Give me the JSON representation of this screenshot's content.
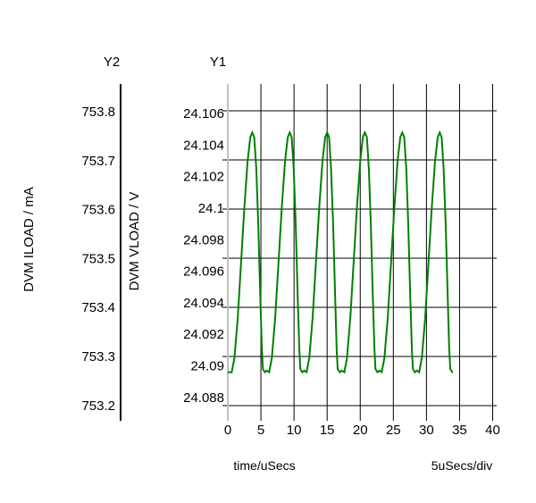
{
  "chart_data": {
    "type": "line",
    "title": "",
    "xlabel": "time/uSecs",
    "x_scale_note": "5uSecs/div",
    "y1_header": "Y1",
    "y2_header": "Y2",
    "y1label": "DVM VLOAD / V",
    "y2label": "DVM ILOAD / mA",
    "xlim": [
      0,
      40
    ],
    "x_ticks": [
      "0",
      "5",
      "10",
      "15",
      "20",
      "25",
      "30",
      "35",
      "40"
    ],
    "x_tick_values": [
      0,
      5,
      10,
      15,
      20,
      25,
      30,
      35,
      40
    ],
    "y1_ticks": [
      "24.106",
      "24.104",
      "24.102",
      "24.1",
      "24.098",
      "24.096",
      "24.094",
      "24.092",
      "24.09",
      "24.088"
    ],
    "y1_tick_values": [
      24.106,
      24.104,
      24.102,
      24.1,
      24.098,
      24.096,
      24.094,
      24.092,
      24.09,
      24.088
    ],
    "y2_ticks": [
      "753.8",
      "753.7",
      "753.6",
      "753.5",
      "753.4",
      "753.3",
      "753.2"
    ],
    "y2_tick_values": [
      753.8,
      753.7,
      753.6,
      753.5,
      753.4,
      753.3,
      753.2
    ],
    "grid": true,
    "series": [
      {
        "name": "DVM VLOAD",
        "axis": "Y1",
        "color": "#008000",
        "peak_times": [
          3.7,
          9.35,
          15.0,
          20.7,
          26.35,
          32.0
        ],
        "cycle_template": [
          [
            -3.1,
            24.0896
          ],
          [
            -2.7,
            24.0905
          ],
          [
            -2.2,
            24.093
          ],
          [
            -1.7,
            24.0965
          ],
          [
            -1.2,
            24.1
          ],
          [
            -0.7,
            24.103
          ],
          [
            -0.3,
            24.1045
          ],
          [
            0,
            24.1048
          ],
          [
            0.3,
            24.1045
          ],
          [
            0.6,
            24.1025
          ],
          [
            0.9,
            24.099
          ],
          [
            1.2,
            24.0945
          ],
          [
            1.45,
            24.091
          ],
          [
            1.6,
            24.0898
          ],
          [
            1.9,
            24.0896
          ],
          [
            2.2,
            24.0897
          ]
        ],
        "start": [
          0,
          24.0896
        ],
        "end": [
          34.0,
          24.0896
        ]
      }
    ]
  }
}
